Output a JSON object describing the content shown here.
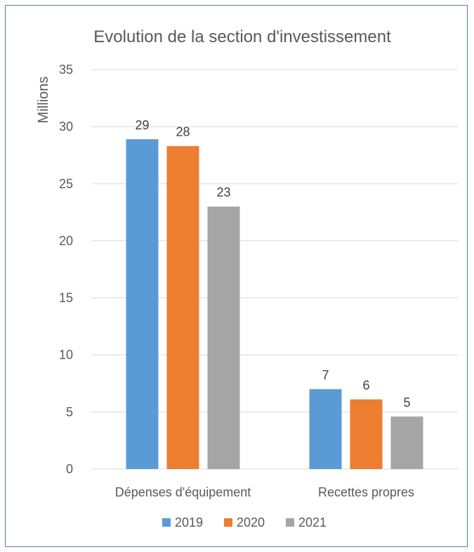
{
  "chart_data": {
    "type": "bar",
    "title": "Evolution de la section d'investissement",
    "xlabel": "",
    "ylabel": "Millions",
    "ylim": [
      0,
      35
    ],
    "yticks": [
      0,
      5,
      10,
      15,
      20,
      25,
      30,
      35
    ],
    "grid": true,
    "legend_position": "bottom",
    "categories": [
      "Dépenses d'équipement",
      "Recettes propres"
    ],
    "series": [
      {
        "name": "2019",
        "color": "#5b9bd5",
        "values": [
          28.9,
          7.0
        ],
        "labels": [
          "29",
          "7"
        ]
      },
      {
        "name": "2020",
        "color": "#ed7d31",
        "values": [
          28.3,
          6.1
        ],
        "labels": [
          "28",
          "6"
        ]
      },
      {
        "name": "2021",
        "color": "#a5a5a5",
        "values": [
          23.0,
          4.6
        ],
        "labels": [
          "23",
          "5"
        ]
      }
    ]
  }
}
